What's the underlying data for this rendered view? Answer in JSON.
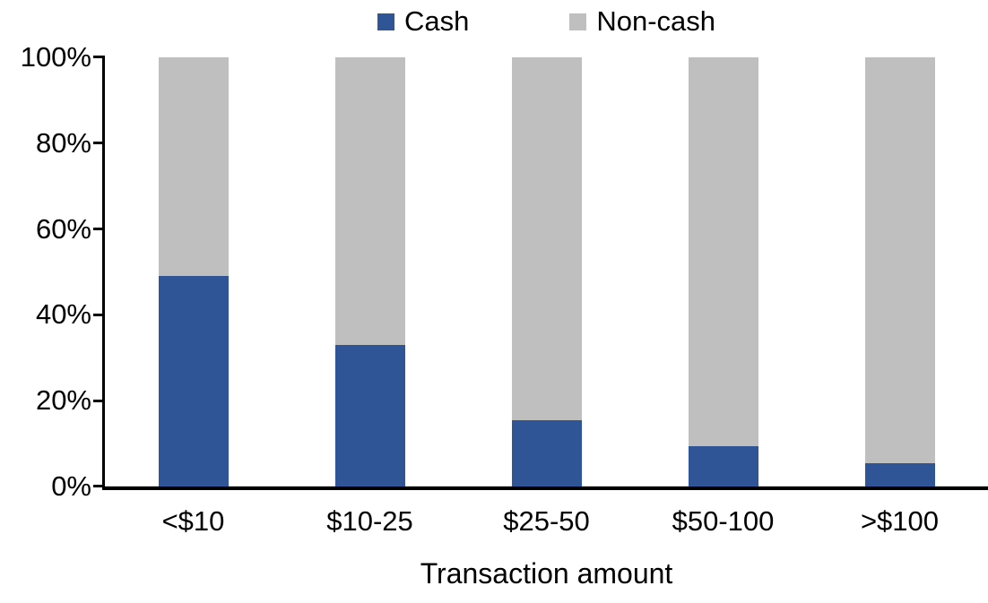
{
  "chart_data": {
    "type": "bar",
    "subtype": "100-percent-stacked-column",
    "categories": [
      "<$10",
      "$10-25",
      "$25-50",
      "$50-100",
      ">$100"
    ],
    "series": [
      {
        "name": "Cash",
        "color": "#2F5597",
        "values": [
          49,
          33,
          15.5,
          9.5,
          5.5
        ]
      },
      {
        "name": "Non-cash",
        "color": "#BFBFBF",
        "values": [
          51,
          67,
          84.5,
          90.5,
          94.5
        ]
      }
    ],
    "title": "",
    "xlabel": "Transaction amount",
    "ylabel": "",
    "ylim": [
      0,
      100
    ],
    "y_tick_labels": [
      "100%",
      "80%",
      "60%",
      "40%",
      "20%",
      "0%"
    ],
    "grid": false,
    "legend_position": "top-center",
    "axis_color": "#000000",
    "background_color": "#FFFFFF"
  }
}
